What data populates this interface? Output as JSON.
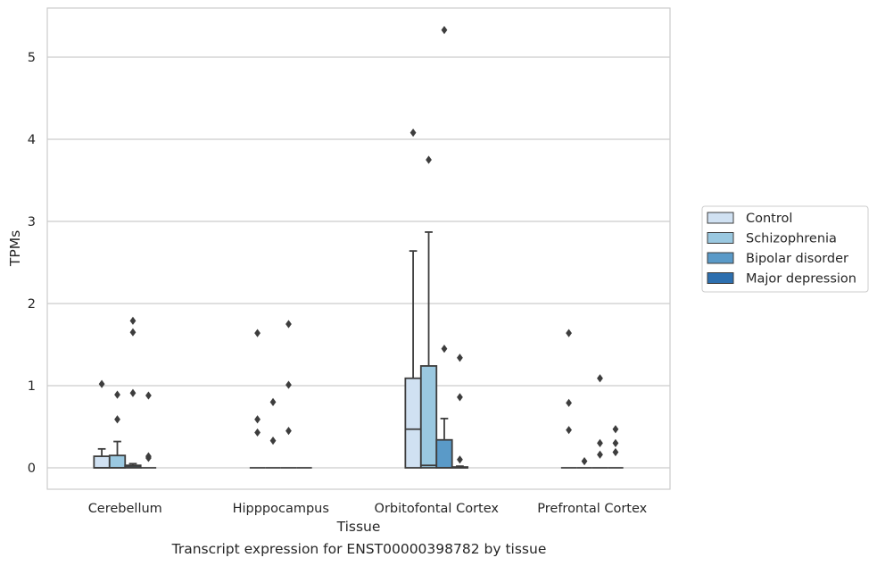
{
  "caption": "Transcript expression for ENST00000398782 by tissue",
  "chart_data": {
    "type": "boxplot",
    "xlabel": "Tissue",
    "ylabel": "TPMs",
    "ylim": [
      -0.26,
      5.6
    ],
    "yticks": [
      0,
      1,
      2,
      3,
      4,
      5
    ],
    "grid": "horizontal",
    "legend_position": "right",
    "categories": [
      "Cerebellum",
      "Hipppocampus",
      "Orbitofontal Cortex",
      "Prefrontal Cortex"
    ],
    "series": [
      {
        "name": "Control",
        "color": "#d0e1f2",
        "boxes": [
          {
            "q1": 0,
            "median": 0,
            "q3": 0.14,
            "whisker_low": 0,
            "whisker_high": 0.23,
            "outliers": [
              1.02
            ]
          },
          {
            "q1": 0,
            "median": 0,
            "q3": 0,
            "whisker_low": 0,
            "whisker_high": 0,
            "outliers": [
              0.43,
              0.59,
              1.64
            ]
          },
          {
            "q1": 0,
            "median": 0.47,
            "q3": 1.09,
            "whisker_low": 0,
            "whisker_high": 2.64,
            "outliers": [
              4.08
            ]
          },
          {
            "q1": 0,
            "median": 0,
            "q3": 0,
            "whisker_low": 0,
            "whisker_high": 0,
            "outliers": [
              0.46,
              0.79,
              1.64
            ]
          }
        ]
      },
      {
        "name": "Schizophrenia",
        "color": "#9ac8e0",
        "boxes": [
          {
            "q1": 0,
            "median": 0,
            "q3": 0.15,
            "whisker_low": 0,
            "whisker_high": 0.32,
            "outliers": [
              0.59,
              0.89
            ]
          },
          {
            "q1": 0,
            "median": 0,
            "q3": 0,
            "whisker_low": 0,
            "whisker_high": 0,
            "outliers": [
              0.33,
              0.8
            ]
          },
          {
            "q1": 0,
            "median": 0.03,
            "q3": 1.24,
            "whisker_low": 0,
            "whisker_high": 2.87,
            "outliers": [
              3.75
            ]
          },
          {
            "q1": 0,
            "median": 0,
            "q3": 0,
            "whisker_low": 0,
            "whisker_high": 0,
            "outliers": [
              0.08
            ]
          }
        ]
      },
      {
        "name": "Bipolar disorder",
        "color": "#5a9ac8",
        "boxes": [
          {
            "q1": 0,
            "median": 0.01,
            "q3": 0.03,
            "whisker_low": 0,
            "whisker_high": 0.05,
            "outliers": [
              0.91,
              1.65,
              1.79
            ]
          },
          {
            "q1": 0,
            "median": 0,
            "q3": 0,
            "whisker_low": 0,
            "whisker_high": 0,
            "outliers": [
              0.45,
              1.01,
              1.75
            ]
          },
          {
            "q1": 0,
            "median": 0,
            "q3": 0.34,
            "whisker_low": 0,
            "whisker_high": 0.6,
            "outliers": [
              1.45,
              5.33
            ]
          },
          {
            "q1": 0,
            "median": 0,
            "q3": 0,
            "whisker_low": 0,
            "whisker_high": 0,
            "outliers": [
              0.16,
              0.3,
              1.09
            ]
          }
        ]
      },
      {
        "name": "Major depression",
        "color": "#2d6faf",
        "boxes": [
          {
            "q1": 0,
            "median": 0,
            "q3": 0,
            "whisker_low": 0,
            "whisker_high": 0,
            "outliers": [
              0.12,
              0.14,
              0.88
            ]
          },
          {
            "q1": 0,
            "median": 0,
            "q3": 0,
            "whisker_low": 0,
            "whisker_high": 0,
            "outliers": []
          },
          {
            "q1": 0,
            "median": 0,
            "q3": 0.01,
            "whisker_low": 0,
            "whisker_high": 0.02,
            "outliers": [
              0.1,
              0.86,
              1.34
            ]
          },
          {
            "q1": 0,
            "median": 0,
            "q3": 0,
            "whisker_low": 0,
            "whisker_high": 0,
            "outliers": [
              0.19,
              0.3,
              0.47
            ]
          }
        ]
      }
    ]
  }
}
